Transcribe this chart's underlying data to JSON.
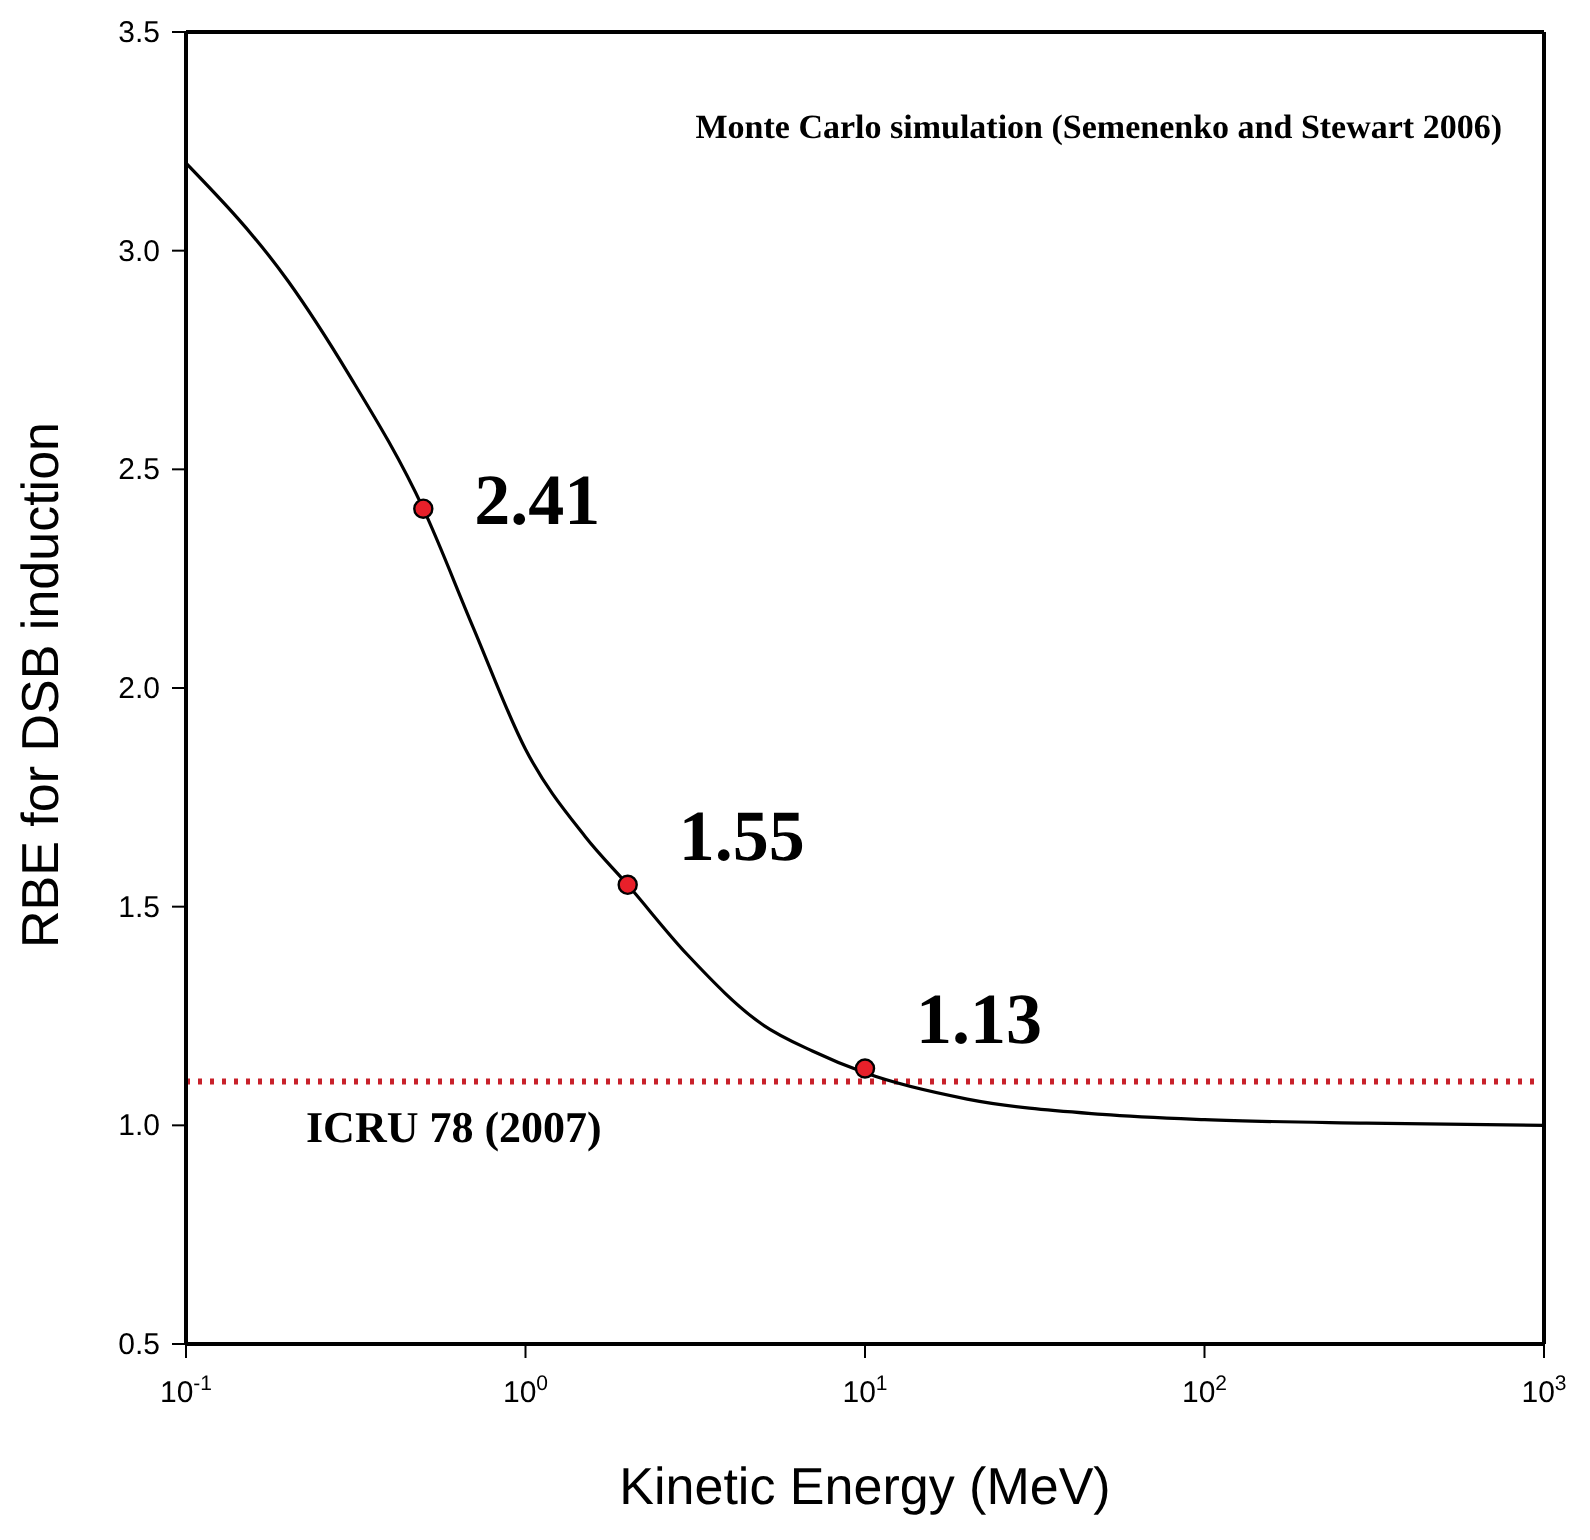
{
  "chart_data": {
    "type": "line",
    "xlabel": "Kinetic Energy (MeV)",
    "ylabel": "RBE for DSB induction",
    "log": "x",
    "xlim": [
      0.1,
      1000
    ],
    "xticks": [
      {
        "value": 0.1,
        "label": "10$^{-1}$"
      },
      {
        "value": 1,
        "label": "10$^{0}$"
      },
      {
        "value": 10,
        "label": "10$^{1}$"
      },
      {
        "value": 100,
        "label": "10$^{2}$"
      },
      {
        "value": 1000,
        "label": "10$^{3}$"
      }
    ],
    "ylim": [
      0.5,
      3.5
    ],
    "yticks": [
      0.5,
      {
        "value": 1,
        "label": "1.0"
      },
      1.5,
      {
        "value": 2,
        "label": "2.0"
      },
      2.5,
      {
        "value": 3,
        "label": "3.0"
      },
      3.5
    ],
    "grid": false,
    "series": [
      {
        "color": "#000000",
        "marker": "none",
        "x": [
          0.1,
          0.2,
          0.3,
          0.5,
          0.7,
          1,
          1.5,
          2,
          3,
          5,
          7,
          10,
          20,
          50,
          100,
          300,
          1000
        ],
        "values": [
          3.2,
          2.93,
          2.72,
          2.41,
          2.14,
          1.86,
          1.66,
          1.55,
          1.39,
          1.23,
          1.17,
          1.12,
          1.06,
          1.025,
          1.013,
          1.005,
          1.0
        ]
      },
      {
        "type": "scatter",
        "color": "#e8202a",
        "marker": "circle",
        "x": [
          0.5,
          2,
          10
        ],
        "values": [
          2.41,
          1.55,
          1.13
        ],
        "value_labels": [
          "2.41",
          "1.55",
          "1.13"
        ]
      }
    ],
    "ref_lines": [
      {
        "axis": "y",
        "value": 1.1,
        "label": "ICRU 78 (2007)",
        "color": "#c8202a",
        "line_style": "dotted"
      }
    ],
    "annotations": [
      "Monte Carlo simulation (Semenenko and Stewart 2006)"
    ]
  }
}
